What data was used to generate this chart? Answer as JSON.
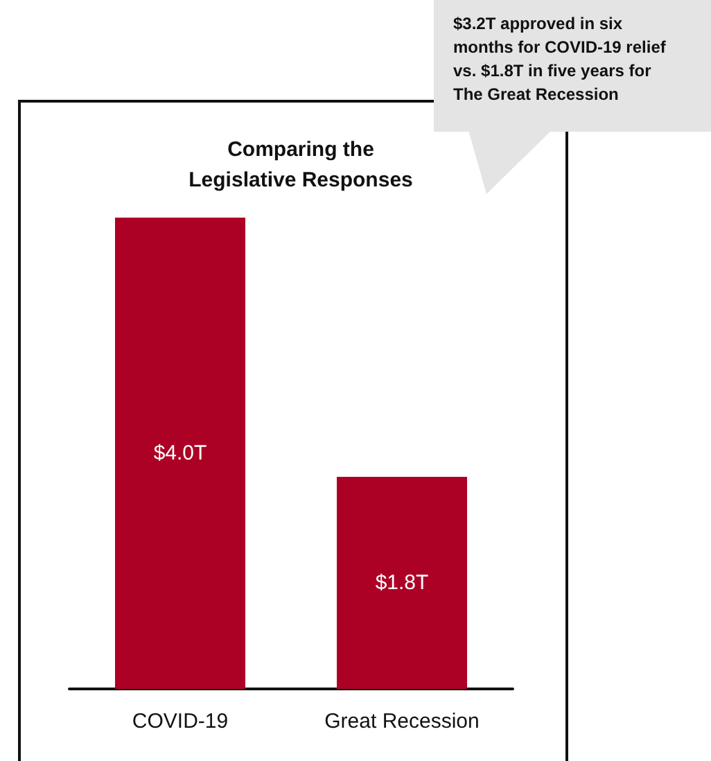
{
  "chart_data": {
    "type": "bar",
    "title": "Comparing the\nLegislative Responses",
    "categories": [
      "COVID-19",
      "Great Recession"
    ],
    "values": [
      4.0,
      1.8
    ],
    "value_labels": [
      "$4.0T",
      "$1.8T"
    ],
    "color": "#ac0025",
    "annotations": [
      "$3.2T approved in six\nmonths for COVID-19 relief\nvs. $1.8T in five years for\nThe Great Recession"
    ]
  }
}
